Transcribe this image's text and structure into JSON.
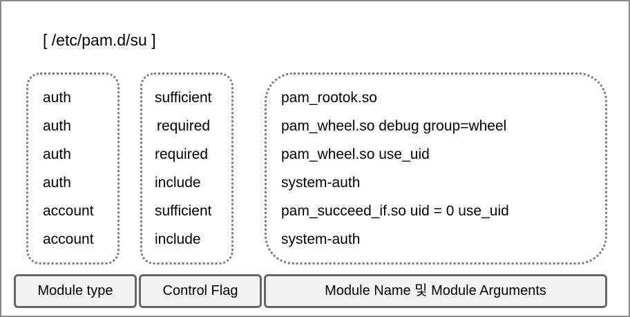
{
  "file_title": "[ /etc/pam.d/su ]",
  "rows": [
    {
      "type": "auth",
      "flag": "sufficient",
      "module": "pam_rootok.so"
    },
    {
      "type": "auth",
      "flag": "required",
      "module": "pam_wheel.so debug group=wheel"
    },
    {
      "type": "auth",
      "flag": "required",
      "module": "pam_wheel.so use_uid"
    },
    {
      "type": "auth",
      "flag": "include",
      "module": "system-auth"
    },
    {
      "type": "account",
      "flag": "sufficient",
      "module": "pam_succeed_if.so uid = 0 use_uid"
    },
    {
      "type": "account",
      "flag": "include",
      "module": "system-auth"
    }
  ],
  "labels": {
    "module_type": "Module type",
    "control_flag": "Control Flag",
    "module_name_args": "Module Name 및 Module Arguments"
  },
  "colors": {
    "frame_border": "#8a8a8a",
    "dotted_border": "#7a7a7a",
    "label_border": "#666666",
    "label_fill": "#f2f2f2"
  }
}
